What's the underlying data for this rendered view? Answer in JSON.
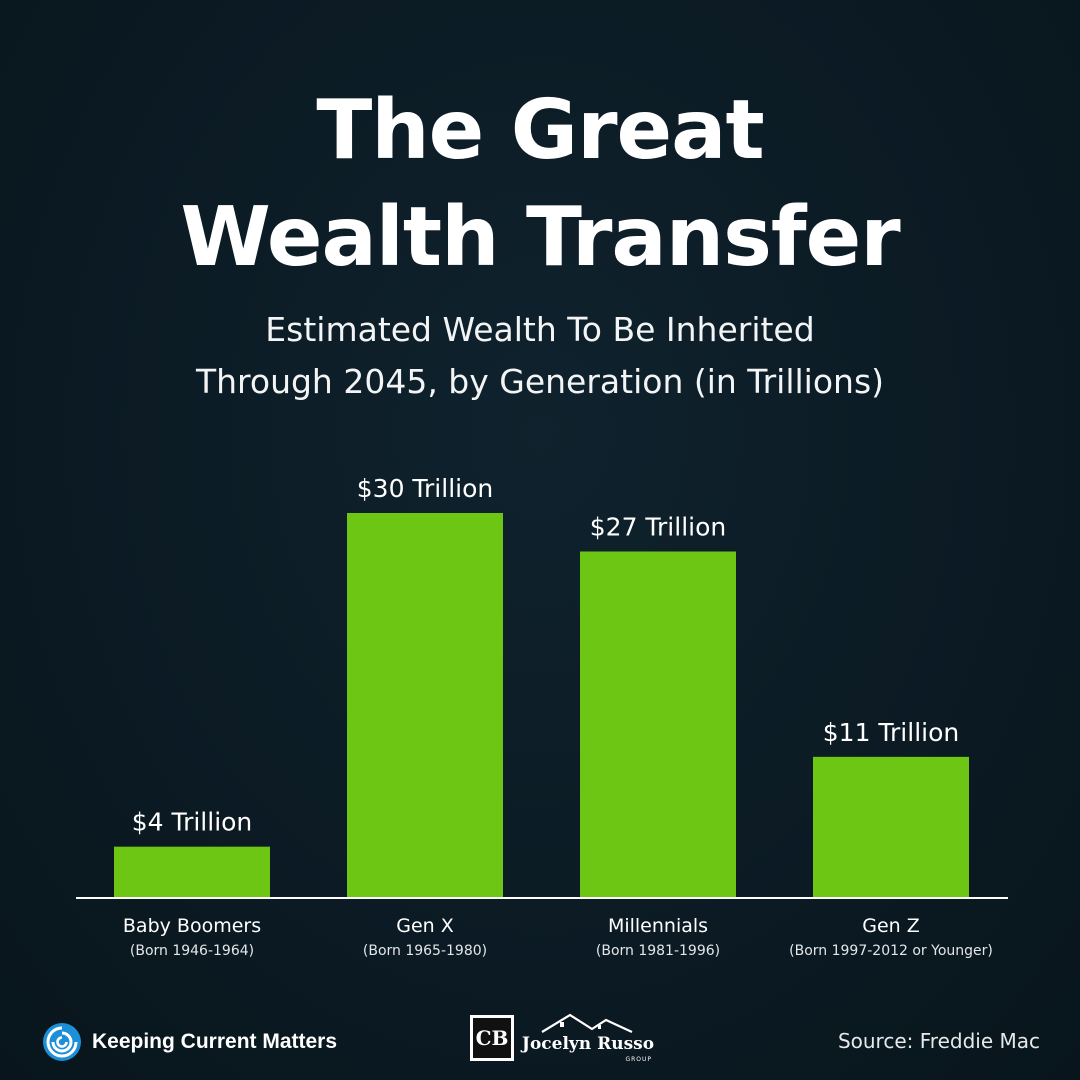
{
  "title": {
    "line1": "The Great",
    "line2": "Wealth Transfer"
  },
  "subtitle": {
    "line1": "Estimated Wealth To Be Inherited",
    "line2": "Through 2045, by Generation (in Trillions)"
  },
  "chart_data": {
    "type": "bar",
    "title": "The Great Wealth Transfer",
    "subtitle": "Estimated Wealth To Be Inherited Through 2045, by Generation (in Trillions)",
    "categories": [
      "Baby Boomers",
      "Gen X",
      "Millennials",
      "Gen Z"
    ],
    "category_sublabels": [
      "(Born 1946-1964)",
      "(Born 1965-1980)",
      "(Born 1981-1996)",
      "(Born 1997-2012 or Younger)"
    ],
    "values": [
      4,
      30,
      27,
      11
    ],
    "data_labels": [
      "$4 Trillion",
      "$30 Trillion",
      "$27 Trillion",
      "$11 Trillion"
    ],
    "ylim": [
      0,
      30
    ],
    "grid": false,
    "bar_color": "#6ec614",
    "baseline_color": "#ffffff"
  },
  "footer": {
    "brand_text": "Keeping Current Matters",
    "brand_icon": "kcm-swirl-icon",
    "partner_logo_text": "Jocelyn Russo",
    "partner_logo_subtext": "GROUP",
    "partner_monogram": "CB",
    "source": "Source: Freddie Mac"
  }
}
